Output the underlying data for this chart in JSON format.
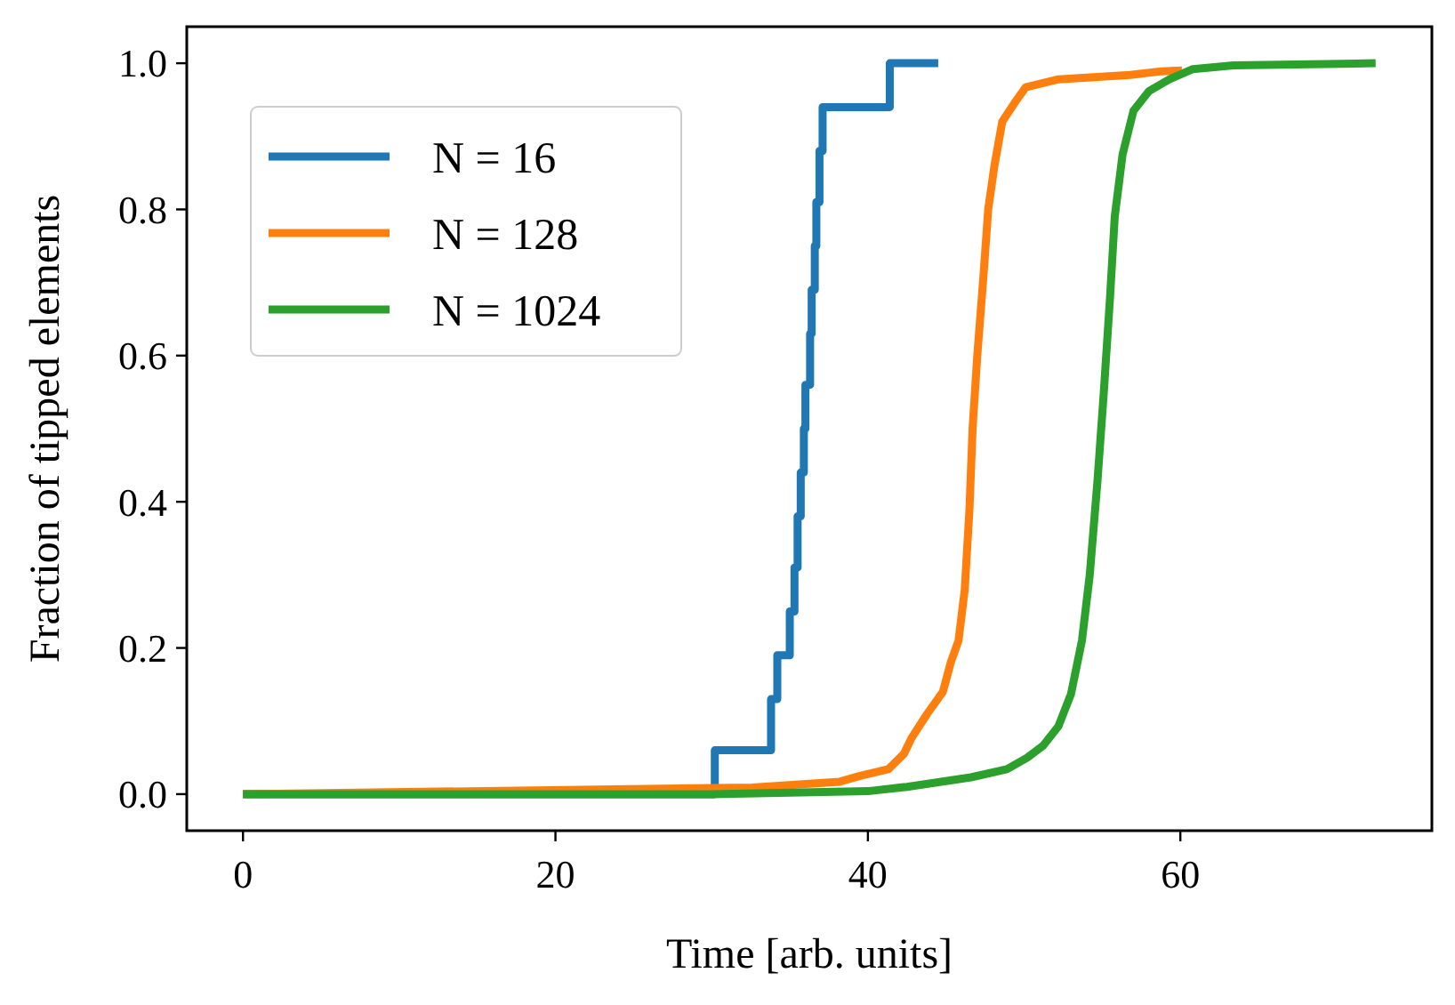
{
  "chart_data": {
    "type": "line",
    "xlabel": "Time [arb. units]",
    "ylabel": "Fraction of tipped elements",
    "xlim": [
      -3.6,
      76.1
    ],
    "ylim": [
      -0.05,
      1.05
    ],
    "xticks": [
      0,
      20,
      40,
      60
    ],
    "yticks": [
      {
        "value": 0,
        "label": "0.0"
      },
      {
        "value": 0.2,
        "label": "0.2"
      },
      {
        "value": 0.4,
        "label": "0.4"
      },
      {
        "value": 0.6,
        "label": "0.6"
      },
      {
        "value": 0.8,
        "label": "0.8"
      },
      {
        "value": 1,
        "label": "1.0"
      }
    ],
    "grid": false,
    "legend": "top left",
    "line_style": "solid",
    "marker": "none",
    "series": [
      {
        "name": "N = 16",
        "type": "step",
        "color": "#1f77b4",
        "x": [
          0,
          30.2,
          33.8,
          34.2,
          35.0,
          35.3,
          35.5,
          35.7,
          35.9,
          36.0,
          36.3,
          36.4,
          36.6,
          36.7,
          36.9,
          37.1,
          41.4,
          44.5
        ],
        "values": [
          0,
          0.06,
          0.13,
          0.19,
          0.25,
          0.31,
          0.38,
          0.44,
          0.5,
          0.56,
          0.63,
          0.69,
          0.75,
          0.81,
          0.88,
          0.94,
          1,
          1
        ]
      },
      {
        "name": "N = 128",
        "color": "#ff7f0e",
        "x": [
          0,
          32.6,
          38.2,
          39.5,
          41.3,
          42.3,
          42.8,
          43.8,
          44.8,
          45.3,
          45.8,
          46.2,
          46.5,
          46.7,
          47.0,
          47.4,
          47.7,
          48.1,
          48.6,
          49.4,
          50.1,
          52.2,
          56.8,
          58.8,
          60.1
        ],
        "values": [
          0,
          0.009,
          0.017,
          0.025,
          0.034,
          0.055,
          0.077,
          0.11,
          0.14,
          0.18,
          0.21,
          0.28,
          0.39,
          0.5,
          0.6,
          0.71,
          0.8,
          0.86,
          0.92,
          0.946,
          0.967,
          0.978,
          0.984,
          0.989,
          0.99
        ]
      },
      {
        "name": "N = 1024",
        "color": "#2ca02c",
        "x": [
          0,
          30,
          35,
          40,
          42.5,
          46.6,
          48.9,
          50.2,
          51.2,
          52.2,
          53.0,
          53.7,
          54.2,
          54.7,
          55.1,
          55.5,
          55.8,
          56.3,
          57.0,
          58.0,
          59.3,
          60.8,
          63.4,
          72.5
        ],
        "values": [
          0,
          0,
          0.002,
          0.004,
          0.01,
          0.023,
          0.034,
          0.05,
          0.066,
          0.093,
          0.137,
          0.21,
          0.3,
          0.43,
          0.55,
          0.68,
          0.79,
          0.875,
          0.935,
          0.962,
          0.978,
          0.992,
          0.997,
          1
        ]
      }
    ]
  }
}
